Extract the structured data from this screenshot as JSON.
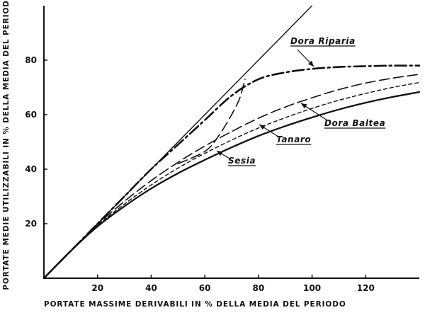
{
  "chart_data": {
    "type": "line",
    "title": "",
    "xlabel": "PORTATE MASSIME DERIVABILI IN % DELLA MEDIA DEL PERIODO",
    "ylabel": "PORTATE MEDIE UTILIZZABILI IN % DELLA MEDIA DEL PERIODO",
    "xlim": [
      0,
      140
    ],
    "ylim": [
      0,
      100
    ],
    "xticks": [
      "20",
      "40",
      "60",
      "80",
      "100",
      "120"
    ],
    "yticks": [
      "20",
      "40",
      "60",
      "80"
    ],
    "grid": false,
    "legend": "none",
    "reference_line": {
      "x": [
        0,
        100
      ],
      "y": [
        0,
        100
      ]
    },
    "series": [
      {
        "name": "Dora Riparia",
        "style": "dash-dot",
        "x": [
          0,
          10,
          20,
          30,
          40,
          50,
          60,
          70,
          80,
          90,
          100,
          110,
          120,
          130,
          140
        ],
        "y": [
          0,
          10,
          20,
          30,
          40,
          49,
          58,
          67,
          73,
          75.5,
          76.8,
          77.5,
          77.8,
          78,
          78
        ]
      },
      {
        "name": "Dora Baltea",
        "style": "long-dash",
        "x": [
          0,
          10,
          20,
          30,
          40,
          50,
          60,
          70,
          80,
          90,
          100,
          110,
          120,
          130,
          140
        ],
        "y": [
          0,
          10,
          19.7,
          28.2,
          35.8,
          42.5,
          48.5,
          53.8,
          58.7,
          62.8,
          66.2,
          69.2,
          71.6,
          73.4,
          74.8
        ]
      },
      {
        "name": "Tanaro",
        "style": "short-dash",
        "x": [
          0,
          10,
          20,
          30,
          40,
          50,
          60,
          70,
          80,
          90,
          100,
          110,
          120,
          130,
          140
        ],
        "y": [
          0,
          10,
          19.3,
          27.2,
          34.2,
          40.4,
          45.8,
          50.7,
          55.1,
          58.9,
          62.3,
          65.3,
          67.8,
          70,
          71.8
        ]
      },
      {
        "name": "Sesia",
        "style": "solid",
        "x": [
          0,
          10,
          20,
          30,
          40,
          50,
          60,
          70,
          80,
          90,
          100,
          110,
          120,
          130,
          140
        ],
        "y": [
          0,
          10,
          19,
          26.4,
          32.9,
          38.5,
          43.4,
          48,
          52.2,
          55.8,
          59,
          61.9,
          64.4,
          66.5,
          68.3
        ]
      },
      {
        "name": "",
        "style": "long-dash",
        "x": [
          50,
          60,
          65,
          70,
          73,
          75
        ],
        "y": [
          42,
          46.5,
          52,
          60,
          66,
          73
        ]
      }
    ],
    "annotations": [
      {
        "text": "Dora Riparia"
      },
      {
        "text": "Dora Baltea"
      },
      {
        "text": "Tanaro"
      },
      {
        "text": "Sesia"
      }
    ]
  }
}
